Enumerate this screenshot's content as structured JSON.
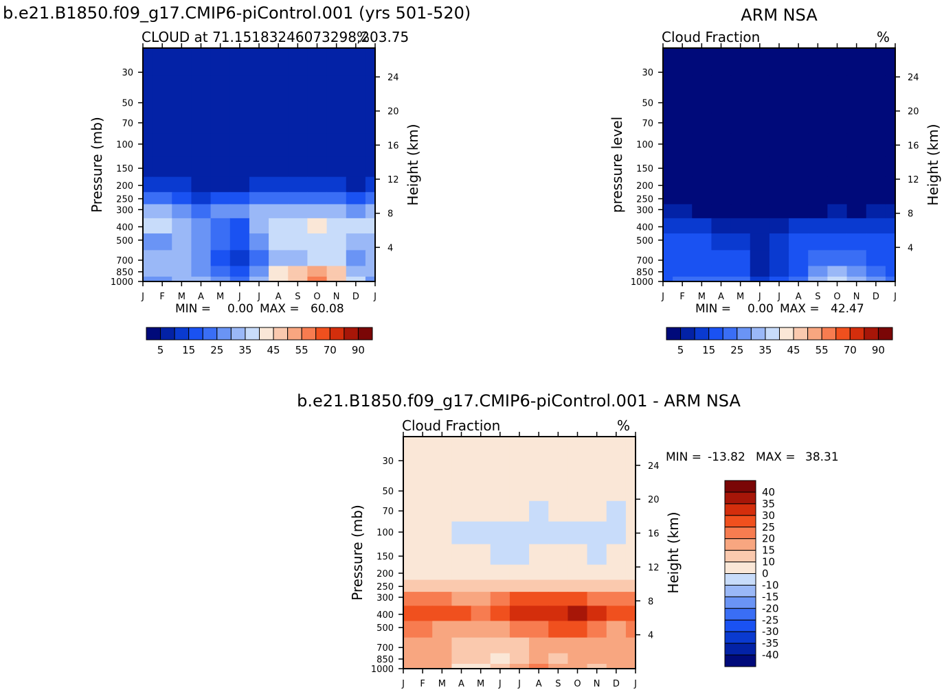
{
  "page": {
    "title_main": "b.e21.B1850.f09_g17.CMIP6-piControl.001 (yrs 501-520)",
    "title_obs": "ARM NSA",
    "title_diff": "b.e21.B1850.f09_g17.CMIP6-piControl.001 - ARM NSA"
  },
  "palettes": {
    "abs": [
      "#000a7a",
      "#0322a6",
      "#0a3ad0",
      "#1a52f2",
      "#3a6ef5",
      "#6a94f5",
      "#9ab8f7",
      "#c8dcfa",
      "#fae7d7",
      "#fac9ae",
      "#f8a680",
      "#f77c50",
      "#f0501e",
      "#d42e0c",
      "#a71608",
      "#7a0606"
    ],
    "diff": [
      "#000a7a",
      "#0322a6",
      "#0a3ad0",
      "#1a52f2",
      "#3a6ef5",
      "#6a94f5",
      "#9ab8f7",
      "#c8dcfa",
      "#fae7d7",
      "#fac9ae",
      "#f8a680",
      "#f77c50",
      "#f0501e",
      "#d42e0c",
      "#a71608",
      "#7a0606"
    ]
  },
  "chart_data": [
    {
      "type": "heatmap",
      "id": "model",
      "subtitle_left": "CLOUD at 71.15183246073298,203.75",
      "subtitle_right": "%",
      "ylabel": "Pressure (mb)",
      "ylabel_right": "Height (km)",
      "xticks": [
        "J",
        "F",
        "M",
        "A",
        "M",
        "J",
        "J",
        "A",
        "S",
        "O",
        "N",
        "D",
        "J"
      ],
      "yticks": [
        30,
        50,
        70,
        100,
        150,
        200,
        250,
        300,
        400,
        500,
        700,
        850,
        1000
      ],
      "yticks_right": [
        24,
        20,
        16,
        12,
        8,
        4
      ],
      "ylim": [
        20,
        1000
      ],
      "stats": {
        "min_label": "MIN =",
        "min": "0.00",
        "max_label": "MAX =",
        "max": "60.08"
      },
      "colorbar_labels": [
        "5",
        "15",
        "25",
        "35",
        "45",
        "55",
        "70",
        "90"
      ],
      "levels": [
        20,
        50,
        70,
        100,
        150,
        200,
        250,
        300,
        400,
        500,
        700,
        850,
        1000
      ],
      "months": [
        "J",
        "F",
        "M",
        "A",
        "M",
        "J",
        "J",
        "A",
        "S",
        "O",
        "N",
        "D",
        "J"
      ],
      "values": [
        [
          1,
          1,
          1,
          1,
          1,
          1,
          1,
          1,
          1,
          1,
          1,
          1,
          1
        ],
        [
          1,
          1,
          1,
          1,
          1,
          1,
          1,
          1,
          1,
          1,
          1,
          1,
          1
        ],
        [
          1,
          1,
          1,
          1,
          1,
          1,
          1,
          1,
          1,
          1,
          1,
          1,
          1
        ],
        [
          1,
          1,
          1,
          1,
          1,
          1,
          1,
          1,
          1,
          1,
          1,
          1,
          1
        ],
        [
          1,
          1,
          1,
          1,
          1,
          1,
          1,
          1,
          1,
          1,
          1,
          1,
          1
        ],
        [
          2,
          2,
          2,
          1,
          1,
          1,
          2,
          2,
          2,
          2,
          2,
          1,
          2
        ],
        [
          4,
          4,
          3,
          2,
          3,
          3,
          4,
          4,
          4,
          4,
          4,
          3,
          4
        ],
        [
          6,
          6,
          5,
          4,
          5,
          5,
          6,
          6,
          6,
          6,
          6,
          5,
          6
        ],
        [
          7,
          7,
          6,
          5,
          4,
          3,
          6,
          7,
          7,
          8,
          7,
          7,
          7
        ],
        [
          5,
          5,
          6,
          5,
          4,
          3,
          5,
          7,
          7,
          7,
          7,
          6,
          6
        ],
        [
          6,
          6,
          6,
          5,
          3,
          2,
          4,
          6,
          6,
          7,
          7,
          5,
          6
        ],
        [
          6,
          6,
          6,
          5,
          4,
          3,
          5,
          8,
          9,
          10,
          9,
          6,
          6
        ],
        [
          5,
          5,
          6,
          6,
          5,
          4,
          6,
          8,
          9,
          11,
          9,
          7,
          5
        ]
      ]
    },
    {
      "type": "heatmap",
      "id": "obs",
      "subtitle_left": "Cloud Fraction",
      "subtitle_right": "%",
      "ylabel": "pressure level",
      "ylabel_right": "Height (km)",
      "xticks": [
        "J",
        "F",
        "M",
        "A",
        "M",
        "J",
        "J",
        "A",
        "S",
        "O",
        "N",
        "D",
        "J"
      ],
      "yticks": [
        30,
        50,
        70,
        100,
        150,
        200,
        250,
        300,
        400,
        500,
        700,
        850,
        1000
      ],
      "yticks_right": [
        24,
        20,
        16,
        12,
        8,
        4
      ],
      "ylim": [
        20,
        1000
      ],
      "stats": {
        "min_label": "MIN =",
        "min": "0.00",
        "max_label": "MAX =",
        "max": "42.47"
      },
      "colorbar_labels": [
        "5",
        "15",
        "25",
        "35",
        "45",
        "55",
        "70",
        "90"
      ],
      "levels": [
        20,
        50,
        70,
        100,
        150,
        200,
        250,
        300,
        400,
        500,
        700,
        850,
        1000
      ],
      "months": [
        "J",
        "F",
        "M",
        "A",
        "M",
        "J",
        "J",
        "A",
        "S",
        "O",
        "N",
        "D",
        "J"
      ],
      "values": [
        [
          0,
          0,
          0,
          0,
          0,
          0,
          0,
          0,
          0,
          0,
          0,
          0,
          0
        ],
        [
          0,
          0,
          0,
          0,
          0,
          0,
          0,
          0,
          0,
          0,
          0,
          0,
          0
        ],
        [
          0,
          0,
          0,
          0,
          0,
          0,
          0,
          0,
          0,
          0,
          0,
          0,
          0
        ],
        [
          0,
          0,
          0,
          0,
          0,
          0,
          0,
          0,
          0,
          0,
          0,
          0,
          0
        ],
        [
          0,
          0,
          0,
          0,
          0,
          0,
          0,
          0,
          0,
          0,
          0,
          0,
          0
        ],
        [
          0,
          0,
          0,
          0,
          0,
          0,
          0,
          0,
          0,
          0,
          0,
          0,
          0
        ],
        [
          0,
          0,
          0,
          0,
          0,
          0,
          0,
          0,
          0,
          0,
          0,
          0,
          0
        ],
        [
          1,
          1,
          0,
          0,
          0,
          0,
          0,
          0,
          0,
          1,
          0,
          1,
          1
        ],
        [
          2,
          2,
          2,
          1,
          1,
          1,
          1,
          2,
          2,
          2,
          2,
          2,
          2
        ],
        [
          3,
          3,
          3,
          2,
          2,
          1,
          2,
          3,
          3,
          3,
          3,
          3,
          3
        ],
        [
          3,
          3,
          3,
          3,
          3,
          1,
          2,
          3,
          4,
          4,
          4,
          3,
          3
        ],
        [
          3,
          3,
          3,
          3,
          3,
          1,
          2,
          3,
          5,
          6,
          5,
          4,
          3
        ],
        [
          3,
          4,
          4,
          4,
          4,
          2,
          3,
          4,
          6,
          7,
          6,
          5,
          4
        ]
      ]
    },
    {
      "type": "heatmap",
      "id": "diff",
      "subtitle_left": "Cloud Fraction",
      "subtitle_right": "%",
      "ylabel": "Pressure (mb)",
      "ylabel_right": "Height (km)",
      "xticks": [
        "J",
        "F",
        "M",
        "A",
        "M",
        "J",
        "J",
        "A",
        "S",
        "O",
        "N",
        "D",
        "J"
      ],
      "yticks": [
        30,
        50,
        70,
        100,
        150,
        200,
        250,
        300,
        400,
        500,
        700,
        850,
        1000
      ],
      "yticks_right": [
        24,
        20,
        16,
        12,
        8,
        4
      ],
      "ylim": [
        20,
        1000
      ],
      "stats": {
        "min_label": "MIN =",
        "min": "-13.82",
        "max_label": "MAX =",
        "max": "38.31"
      },
      "colorbar_labels": [
        "40",
        "35",
        "30",
        "25",
        "20",
        "15",
        "10",
        "0",
        "-10",
        "-15",
        "-20",
        "-25",
        "-30",
        "-35",
        "-40"
      ],
      "levels": [
        20,
        50,
        70,
        100,
        150,
        200,
        250,
        300,
        400,
        500,
        700,
        850,
        1000
      ],
      "months": [
        "J",
        "F",
        "M",
        "A",
        "M",
        "J",
        "J",
        "A",
        "S",
        "O",
        "N",
        "D",
        "J"
      ],
      "values": [
        [
          8,
          8,
          8,
          8,
          8,
          8,
          8,
          8,
          8,
          8,
          8,
          8,
          8
        ],
        [
          8,
          8,
          8,
          8,
          8,
          8,
          8,
          8,
          8,
          8,
          8,
          8,
          8
        ],
        [
          8,
          8,
          8,
          8,
          8,
          8,
          8,
          7,
          8,
          8,
          8,
          7,
          8
        ],
        [
          8,
          8,
          8,
          7,
          7,
          7,
          7,
          7,
          7,
          7,
          7,
          7,
          8
        ],
        [
          8,
          8,
          8,
          8,
          8,
          7,
          7,
          8,
          8,
          8,
          7,
          8,
          8
        ],
        [
          8,
          8,
          8,
          8,
          8,
          8,
          8,
          8,
          8,
          8,
          8,
          8,
          8
        ],
        [
          9,
          9,
          9,
          9,
          9,
          9,
          9,
          9,
          9,
          9,
          9,
          9,
          9
        ],
        [
          11,
          11,
          11,
          10,
          10,
          11,
          12,
          12,
          12,
          12,
          11,
          11,
          11
        ],
        [
          12,
          12,
          12,
          12,
          11,
          12,
          13,
          13,
          13,
          14,
          13,
          12,
          12
        ],
        [
          11,
          11,
          10,
          10,
          10,
          10,
          11,
          11,
          12,
          12,
          11,
          10,
          11
        ],
        [
          10,
          10,
          10,
          9,
          9,
          9,
          9,
          10,
          10,
          10,
          10,
          10,
          10
        ],
        [
          10,
          10,
          10,
          9,
          9,
          8,
          9,
          10,
          9,
          10,
          10,
          10,
          10
        ],
        [
          10,
          10,
          10,
          8,
          8,
          9,
          10,
          11,
          10,
          10,
          9,
          10,
          10
        ]
      ]
    }
  ]
}
